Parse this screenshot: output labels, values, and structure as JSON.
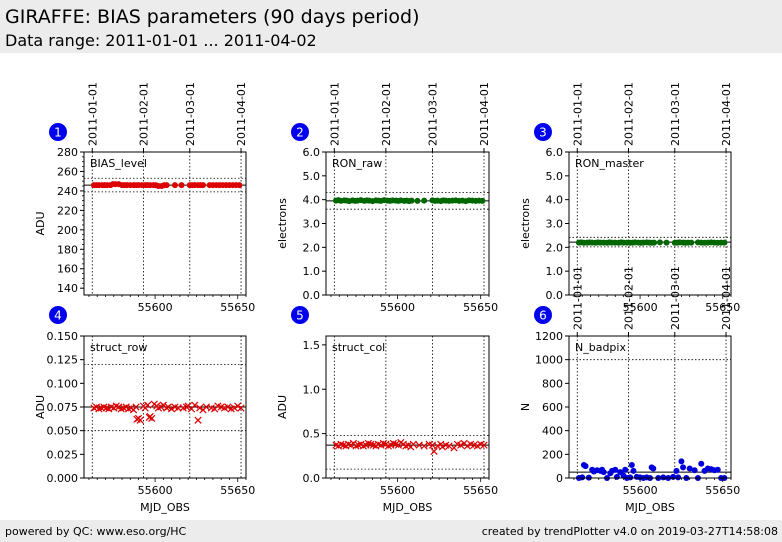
{
  "header": {
    "title": "GIRAFFE: BIAS parameters (90 days period)",
    "subtitle": "Data range: 2011-01-01 ... 2011-04-02"
  },
  "footer": {
    "left": "powered by QC: www.eso.org/HC",
    "right": "created by trendPlotter v4.0 on 2019-03-27T14:58:08"
  },
  "colors": {
    "red": "#dd0000",
    "green": "#006600",
    "blue": "#0000dd",
    "badge": "#0000ee"
  },
  "chart_data": [
    {
      "type": "scatter",
      "id": "1",
      "label": "BIAS_level",
      "ylabel": "ADU",
      "xlabel": "",
      "ylim": [
        133,
        280
      ],
      "yticks": [
        140,
        160,
        180,
        200,
        220,
        240,
        260,
        280
      ],
      "ytick_labels": [
        "140",
        "160",
        "180",
        "200",
        "220",
        "240",
        "260",
        "280"
      ],
      "ref_lines": [
        253,
        246,
        239
      ],
      "marker": "circle",
      "color": "red",
      "show_top_dates": true,
      "show_xtick_labels": false,
      "series": [
        {
          "x": [
            55563,
            55564.5,
            55566,
            55568,
            55569.5,
            55571,
            55573,
            55574.5,
            55576,
            55578,
            55580,
            55581.5,
            55583,
            55585,
            55587,
            55588.5,
            55590,
            55592,
            55594,
            55595.5,
            55597,
            55599,
            55600.5,
            55602,
            55604,
            55605.5,
            55607,
            55612,
            55616,
            55621,
            55622.5,
            55624,
            55626,
            55627.5,
            55629,
            55633,
            55635,
            55637,
            55639,
            55641,
            55643,
            55645,
            55647,
            55649,
            55651
          ],
          "y": [
            246,
            246,
            246,
            246,
            246,
            246,
            246,
            247,
            247,
            247,
            246,
            246,
            246,
            246,
            246,
            246,
            246,
            246,
            246,
            246,
            246,
            246,
            246,
            245,
            245,
            246,
            246,
            246,
            246,
            246,
            246,
            246,
            246,
            246,
            246,
            246,
            246,
            246,
            246,
            246,
            246,
            246,
            246,
            246,
            246
          ]
        }
      ]
    },
    {
      "type": "scatter",
      "id": "2",
      "label": "RON_raw",
      "ylabel": "electrons",
      "xlabel": "",
      "ylim": [
        0,
        6
      ],
      "yticks": [
        0,
        1,
        2,
        3,
        4,
        5,
        6
      ],
      "ytick_labels": [
        "0.0",
        "1.0",
        "2.0",
        "3.0",
        "4.0",
        "5.0",
        "6.0"
      ],
      "ref_lines": [
        4.3,
        3.95,
        3.6
      ],
      "marker": "circle",
      "color": "green",
      "show_top_dates": true,
      "show_xtick_labels": false,
      "series": [
        {
          "x": [
            55563,
            55564.5,
            55566,
            55568,
            55569.5,
            55571,
            55573,
            55574.5,
            55576,
            55578,
            55580,
            55581.5,
            55583,
            55585,
            55587,
            55588.5,
            55590,
            55592,
            55594,
            55595.5,
            55597,
            55599,
            55600.5,
            55602,
            55604,
            55605.5,
            55607,
            55608.5,
            55612,
            55616,
            55621,
            55622.5,
            55624,
            55626,
            55627.5,
            55629,
            55631,
            55633,
            55635,
            55637,
            55639,
            55641,
            55643,
            55645,
            55647,
            55649,
            55651
          ],
          "y": [
            3.96,
            3.98,
            3.95,
            3.97,
            3.96,
            3.94,
            3.97,
            3.95,
            3.96,
            3.98,
            3.95,
            3.97,
            3.96,
            3.94,
            3.97,
            3.96,
            3.95,
            3.98,
            3.96,
            3.95,
            3.97,
            3.96,
            3.95,
            3.97,
            3.95,
            3.96,
            3.94,
            3.96,
            3.95,
            3.96,
            3.97,
            3.95,
            3.96,
            3.94,
            3.97,
            3.96,
            3.95,
            3.96,
            3.97,
            3.95,
            3.96,
            3.94,
            3.97,
            3.96,
            3.95,
            3.96,
            3.95
          ]
        }
      ]
    },
    {
      "type": "scatter",
      "id": "3",
      "label": "RON_master",
      "ylabel": "electrons",
      "xlabel": "",
      "ylim": [
        0,
        6
      ],
      "yticks": [
        0,
        1,
        2,
        3,
        4,
        5,
        6
      ],
      "ytick_labels": [
        "0.0",
        "1.0",
        "2.0",
        "3.0",
        "4.0",
        "5.0",
        "6.0"
      ],
      "ref_lines": [
        2.42,
        2.22,
        2.02
      ],
      "marker": "circle",
      "color": "green",
      "show_top_dates": true,
      "show_xtick_labels": false,
      "series": [
        {
          "x": [
            55563,
            55564.5,
            55566,
            55568,
            55569.5,
            55571,
            55573,
            55574.5,
            55576,
            55578,
            55580,
            55581.5,
            55583,
            55585,
            55587,
            55588.5,
            55590,
            55592,
            55594,
            55595.5,
            55597,
            55599,
            55600.5,
            55602,
            55604,
            55605.5,
            55607,
            55608.5,
            55612,
            55616,
            55621,
            55622.5,
            55624,
            55626,
            55627.5,
            55629,
            55631,
            55635,
            55637,
            55639,
            55641,
            55643,
            55645,
            55647,
            55649,
            55651
          ],
          "y": [
            2.2,
            2.21,
            2.19,
            2.2,
            2.21,
            2.2,
            2.19,
            2.21,
            2.2,
            2.2,
            2.19,
            2.21,
            2.2,
            2.2,
            2.19,
            2.21,
            2.2,
            2.2,
            2.19,
            2.2,
            2.21,
            2.2,
            2.19,
            2.2,
            2.21,
            2.2,
            2.19,
            2.2,
            2.21,
            2.2,
            2.19,
            2.2,
            2.21,
            2.2,
            2.19,
            2.2,
            2.2,
            2.21,
            2.2,
            2.19,
            2.2,
            2.21,
            2.2,
            2.19,
            2.2,
            2.2
          ]
        }
      ]
    },
    {
      "type": "scatter",
      "id": "4",
      "label": "struct_row",
      "ylabel": "ADU",
      "xlabel": "MJD_OBS",
      "ylim": [
        0,
        0.15
      ],
      "yticks": [
        0,
        0.025,
        0.05,
        0.075,
        0.1,
        0.125,
        0.15
      ],
      "ytick_labels": [
        "0.000",
        "0.025",
        "0.050",
        "0.075",
        "0.100",
        "0.125",
        "0.150"
      ],
      "ref_lines": [
        0.12,
        0.075,
        0.05
      ],
      "marker": "x",
      "color": "red",
      "show_top_dates": false,
      "show_xtick_labels": true,
      "series": [
        {
          "x": [
            55563,
            55564.5,
            55566,
            55567.5,
            55569,
            55570.5,
            55572,
            55573.5,
            55575,
            55576.5,
            55578,
            55579.5,
            55581,
            55582.5,
            55584,
            55585.5,
            55587,
            55588.5,
            55589,
            55590,
            55591,
            55593,
            55594,
            55595.5,
            55596.5,
            55597,
            55598,
            55599.5,
            55601,
            55602,
            55603.5,
            55605,
            55607,
            55608,
            55610,
            55612,
            55614,
            55617,
            55619,
            55620,
            55622,
            55624,
            55626,
            55627,
            55629,
            55631,
            55634,
            55636,
            55638,
            55640,
            55642,
            55644,
            55646,
            55648,
            55650,
            55652
          ],
          "y": [
            0.074,
            0.075,
            0.073,
            0.074,
            0.075,
            0.074,
            0.073,
            0.075,
            0.074,
            0.076,
            0.075,
            0.073,
            0.074,
            0.075,
            0.073,
            0.074,
            0.072,
            0.075,
            0.062,
            0.063,
            0.061,
            0.076,
            0.074,
            0.077,
            0.064,
            0.065,
            0.063,
            0.078,
            0.076,
            0.074,
            0.075,
            0.077,
            0.074,
            0.075,
            0.073,
            0.075,
            0.074,
            0.074,
            0.075,
            0.076,
            0.073,
            0.077,
            0.061,
            0.074,
            0.072,
            0.075,
            0.074,
            0.073,
            0.076,
            0.075,
            0.074,
            0.075,
            0.073,
            0.074,
            0.076,
            0.074
          ]
        }
      ]
    },
    {
      "type": "scatter",
      "id": "5",
      "label": "struct_col",
      "ylabel": "ADU",
      "xlabel": "MJD_OBS",
      "ylim": [
        0,
        1.6
      ],
      "yticks": [
        0,
        0.5,
        1,
        1.5
      ],
      "ytick_labels": [
        "0.0",
        "0.5",
        "1.0",
        "1.5"
      ],
      "ref_lines": [
        0.48,
        0.37,
        0.1
      ],
      "marker": "x",
      "color": "red",
      "show_top_dates": false,
      "show_xtick_labels": true,
      "series": [
        {
          "x": [
            55563,
            55564.5,
            55566,
            55567.5,
            55569,
            55570.5,
            55572,
            55573.5,
            55575,
            55576.5,
            55578,
            55579.5,
            55581,
            55582.5,
            55584,
            55585.5,
            55587,
            55588.5,
            55590,
            55591.5,
            55593,
            55594.5,
            55596,
            55597.5,
            55599,
            55600.5,
            55602,
            55603.5,
            55605,
            55606.5,
            55608,
            55609.5,
            55613,
            55616,
            55619,
            55621,
            55622,
            55624,
            55626,
            55627,
            55629,
            55631,
            55634,
            55636,
            55638,
            55640,
            55642,
            55644,
            55646,
            55648,
            55650,
            55652
          ],
          "y": [
            0.37,
            0.36,
            0.38,
            0.37,
            0.36,
            0.38,
            0.37,
            0.39,
            0.36,
            0.37,
            0.38,
            0.36,
            0.37,
            0.39,
            0.38,
            0.37,
            0.36,
            0.38,
            0.37,
            0.39,
            0.38,
            0.36,
            0.37,
            0.39,
            0.38,
            0.37,
            0.4,
            0.38,
            0.36,
            0.37,
            0.35,
            0.38,
            0.37,
            0.36,
            0.38,
            0.37,
            0.3,
            0.36,
            0.38,
            0.35,
            0.37,
            0.36,
            0.34,
            0.38,
            0.37,
            0.39,
            0.36,
            0.38,
            0.37,
            0.36,
            0.38,
            0.37
          ]
        }
      ]
    },
    {
      "type": "scatter",
      "id": "6",
      "label": "N_badpix",
      "ylabel": "N",
      "xlabel": "MJD_OBS",
      "ylim": [
        0,
        1200
      ],
      "yticks": [
        0,
        200,
        400,
        600,
        800,
        1000,
        1200
      ],
      "ytick_labels": [
        "0",
        "200",
        "400",
        "600",
        "800",
        "1000",
        "1200"
      ],
      "ref_lines": [
        1000,
        50
      ],
      "marker": "circle",
      "color": "blue",
      "show_top_dates": true,
      "show_xtick_labels": true,
      "series": [
        {
          "x": [
            55563,
            55565,
            55566,
            55567,
            55569,
            55571,
            55572,
            55574,
            55576,
            55577,
            55578,
            55580,
            55582,
            55583,
            55585,
            55586,
            55588,
            55590,
            55591,
            55592,
            55594,
            55595,
            55596,
            55598,
            55600,
            55602,
            55604,
            55606,
            55607,
            55608,
            55611,
            55614,
            55617,
            55620,
            55622,
            55623,
            55625,
            55626,
            55628,
            55630,
            55633,
            55635,
            55637,
            55639,
            55641,
            55643,
            55645,
            55647,
            55649,
            55651
          ],
          "y": [
            0,
            5,
            110,
            100,
            3,
            70,
            55,
            65,
            60,
            70,
            50,
            0,
            40,
            60,
            70,
            10,
            50,
            20,
            70,
            0,
            5,
            110,
            60,
            10,
            5,
            0,
            5,
            0,
            90,
            80,
            0,
            5,
            0,
            10,
            60,
            5,
            140,
            90,
            0,
            80,
            65,
            0,
            120,
            60,
            80,
            75,
            65,
            70,
            0,
            0
          ]
        }
      ]
    }
  ],
  "x_axis": {
    "xlim": [
      55557,
      55655
    ],
    "ticks": [
      55600,
      55650
    ],
    "tick_labels": [
      "55600",
      "55650"
    ],
    "grid_x": [
      55562,
      55593,
      55621,
      55652
    ]
  },
  "top_dates": [
    {
      "mjd": 55562,
      "label": "2011-01-01"
    },
    {
      "mjd": 55593,
      "label": "2011-02-01"
    },
    {
      "mjd": 55621,
      "label": "2011-03-01"
    },
    {
      "mjd": 55652,
      "label": "2011-04-01"
    }
  ]
}
